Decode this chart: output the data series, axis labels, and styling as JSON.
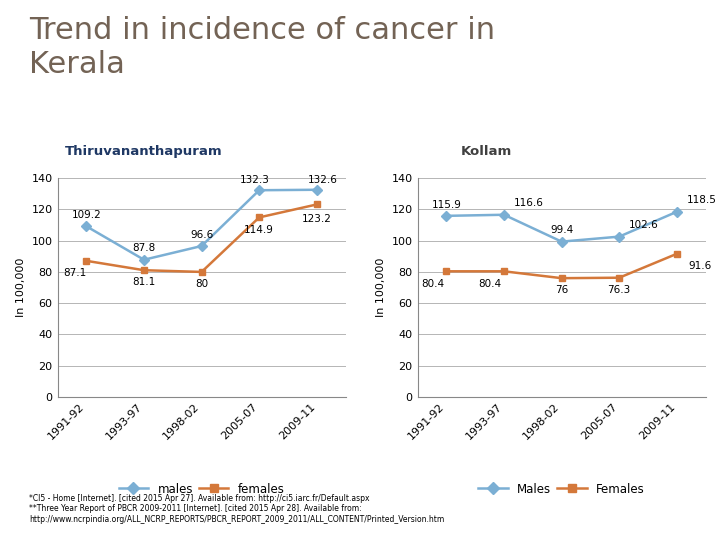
{
  "title": "Trend in incidence of cancer in\nKerala",
  "title_fontsize": 22,
  "title_color": "#736355",
  "header_bg_color": "#a8c4d8",
  "header_orange_color": "#d4783a",
  "header_text_color": "#1f3864",
  "kollam_text_color": "#404040",
  "categories": [
    "1991-92",
    "1993-97",
    "1998-02",
    "2005-07",
    "2009-11"
  ],
  "left_title": "Thiruvananthapuram",
  "right_title": "Kollam",
  "left_males": [
    109.2,
    87.8,
    96.6,
    132.3,
    132.6
  ],
  "left_females": [
    87.1,
    81.1,
    80,
    114.9,
    123.2
  ],
  "right_males": [
    115.9,
    116.6,
    99.4,
    102.6,
    118.5
  ],
  "right_females": [
    80.4,
    80.4,
    76,
    76.3,
    91.6
  ],
  "ylabel": "In 100,000",
  "ylim": [
    0,
    140
  ],
  "yticks": [
    0,
    20,
    40,
    60,
    80,
    100,
    120,
    140
  ],
  "male_color": "#7bafd4",
  "female_color": "#d4783a",
  "male_marker": "D",
  "female_marker": "s",
  "grid_color": "#aaaaaa",
  "footnote_line1": "*CI5 - Home [Internet]. [cited 2015 Apr 27]. Available from: http://ci5.iarc.fr/Default.aspx",
  "footnote_line2": "**Three Year Report of PBCR 2009-2011 [Internet]. [cited 2015 Apr 28]. Available from:",
  "footnote_line3": "http://www.ncrpindia.org/ALL_NCRP_REPORTS/PBCR_REPORT_2009_2011/ALL_CONTENT/Printed_Version.htm"
}
